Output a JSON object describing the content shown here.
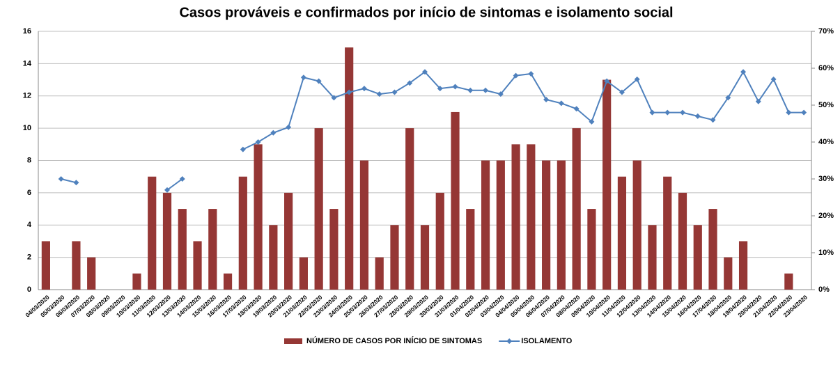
{
  "chart_data": {
    "type": "bar_line",
    "title": "Casos prováveis e  confirmados por início de sintomas e isolamento social",
    "categories": [
      "04/03/2020",
      "05/03/2020",
      "06/03/2020",
      "07/03/2020",
      "08/03/2020",
      "09/03/2020",
      "10/03/2020",
      "11/03/2020",
      "12/03/2020",
      "13/03/2020",
      "14/03/2020",
      "15/03/2020",
      "16/03/2020",
      "17/03/2020",
      "18/03/2020",
      "19/03/2020",
      "20/03/2020",
      "21/03/2020",
      "22/03/2020",
      "23/03/2020",
      "24/03/2020",
      "25/03/2020",
      "26/03/2020",
      "27/03/2020",
      "28/03/2020",
      "29/03/2020",
      "30/03/2020",
      "31/03/2020",
      "01/04/2020",
      "02/04/2020",
      "03/04/2020",
      "04/04/2020",
      "05/04/2020",
      "06/04/2020",
      "07/04/2020",
      "08/04/2020",
      "09/04/2020",
      "10/04/2020",
      "11/04/2020",
      "12/04/2020",
      "13/04/2020",
      "14/04/2020",
      "15/04/2020",
      "16/04/2020",
      "17/04/2020",
      "18/04/2020",
      "19/04/2020",
      "20/04/2020",
      "21/04/2020",
      "22/04/2020",
      "23/04/2020"
    ],
    "series": [
      {
        "name": "NÚMERO DE CASOS POR INÍCIO DE SINTOMAS",
        "type": "bar",
        "color": "#953735",
        "values": [
          3,
          0,
          3,
          2,
          0,
          0,
          1,
          7,
          6,
          5,
          3,
          5,
          1,
          7,
          9,
          4,
          6,
          2,
          10,
          5,
          15,
          8,
          2,
          4,
          10,
          4,
          6,
          11,
          5,
          8,
          8,
          9,
          9,
          8,
          8,
          10,
          5,
          13,
          7,
          8,
          4,
          7,
          6,
          4,
          5,
          2,
          3,
          0,
          0,
          1,
          0
        ]
      },
      {
        "name": "ISOLAMENTO",
        "type": "line",
        "axis": "y2",
        "color": "#4f81bd",
        "values": [
          null,
          30,
          29,
          null,
          null,
          null,
          null,
          null,
          27,
          30,
          null,
          null,
          null,
          38,
          40,
          42.5,
          44,
          57.5,
          56.5,
          52,
          53.5,
          54.5,
          53,
          53.5,
          56,
          59,
          54.5,
          55,
          54,
          54,
          53,
          58,
          58.5,
          51.5,
          50.5,
          49,
          45.5,
          56.5,
          53.5,
          57,
          48,
          48,
          48,
          47,
          46,
          52,
          59,
          51,
          57,
          48,
          48
        ]
      }
    ],
    "ylim": [
      0,
      16
    ],
    "yticks": [
      0,
      2,
      4,
      6,
      8,
      10,
      12,
      14,
      16
    ],
    "y2lim": [
      0,
      70
    ],
    "y2ticks": [
      {
        "value": 0,
        "label": "0%"
      },
      {
        "value": 10,
        "label": "10%"
      },
      {
        "value": 20,
        "label": "20%"
      },
      {
        "value": 30,
        "label": "30%"
      },
      {
        "value": 40,
        "label": "40%"
      },
      {
        "value": 50,
        "label": "50%"
      },
      {
        "value": 60,
        "label": "60%"
      },
      {
        "value": 70,
        "label": "70%"
      }
    ],
    "grid": true,
    "legend": "bottom"
  }
}
